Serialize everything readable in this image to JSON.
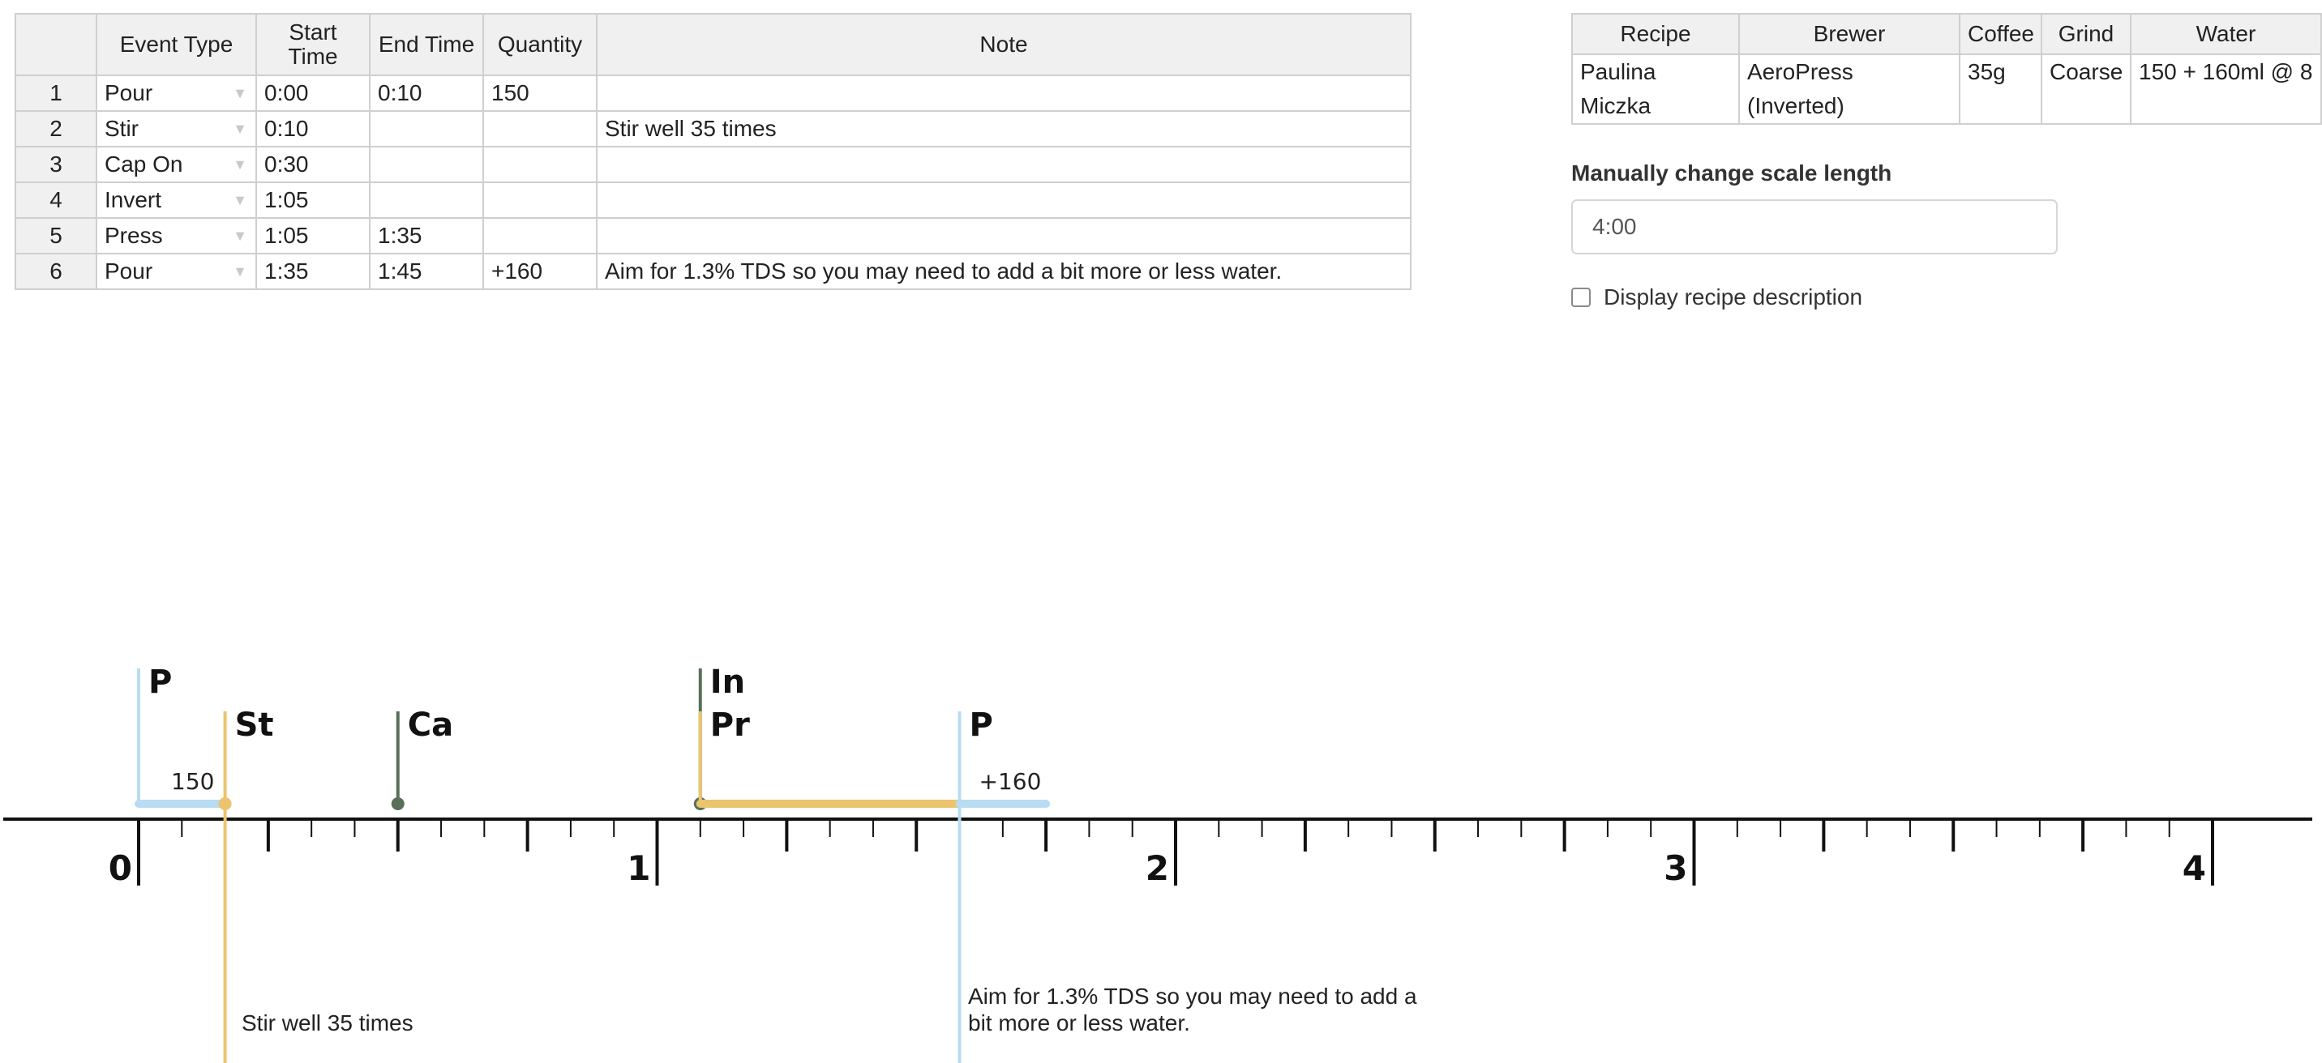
{
  "events_table": {
    "headers": [
      "",
      "Event Type",
      "Start Time",
      "End Time",
      "Quantity",
      "Note"
    ],
    "rows": [
      {
        "num": "1",
        "type": "Pour",
        "start": "0:00",
        "end": "0:10",
        "quantity": "150",
        "note": ""
      },
      {
        "num": "2",
        "type": "Stir",
        "start": "0:10",
        "end": "",
        "quantity": "",
        "note": "Stir well 35 times"
      },
      {
        "num": "3",
        "type": "Cap On",
        "start": "0:30",
        "end": "",
        "quantity": "",
        "note": ""
      },
      {
        "num": "4",
        "type": "Invert",
        "start": "1:05",
        "end": "",
        "quantity": "",
        "note": ""
      },
      {
        "num": "5",
        "type": "Press",
        "start": "1:05",
        "end": "1:35",
        "quantity": "",
        "note": ""
      },
      {
        "num": "6",
        "type": "Pour",
        "start": "1:35",
        "end": "1:45",
        "quantity": "+160",
        "note": "Aim for 1.3% TDS so you may need to add a bit more or less water."
      }
    ],
    "dropdown_icon": "triangle-down-icon"
  },
  "recipe_table": {
    "headers": [
      "Recipe",
      "Brewer",
      "Coffee",
      "Grind",
      "Water"
    ],
    "row": {
      "recipe": "Paulina Miczka",
      "brewer": "AeroPress (Inverted)",
      "coffee": "35g",
      "grind": "Coarse",
      "water": "150 + 160ml @ 8"
    }
  },
  "scale": {
    "label": "Manually change scale length",
    "value": "4:00"
  },
  "description_toggle": {
    "label": "Display recipe description",
    "checked": false
  },
  "timeline": {
    "scale_minutes": 4,
    "major_labels": [
      "0",
      "1",
      "2",
      "3",
      "4"
    ],
    "colors": {
      "pour": "#b8dcf2",
      "stir": "#ecc46e",
      "cap": "#596f59",
      "invert": "#596f59",
      "press": "#ecc46e",
      "axis": "#111111"
    },
    "events": [
      {
        "abbr": "P",
        "kind": "pour",
        "start_min": 0.0,
        "end_min": 0.1667,
        "quantity": "150",
        "row": 0
      },
      {
        "abbr": "St",
        "kind": "stir",
        "start_min": 0.1667,
        "end_min": null,
        "row": 1,
        "note": "Stir well 35 times"
      },
      {
        "abbr": "Ca",
        "kind": "cap",
        "start_min": 0.5,
        "end_min": null,
        "row": 1
      },
      {
        "abbr": "In",
        "kind": "invert",
        "start_min": 1.0833,
        "end_min": null,
        "row": 0
      },
      {
        "abbr": "Pr",
        "kind": "press",
        "start_min": 1.0833,
        "end_min": 1.5833,
        "row": 1
      },
      {
        "abbr": "P",
        "kind": "pour",
        "start_min": 1.5833,
        "end_min": 1.75,
        "quantity": "+160",
        "row": 1,
        "note": "Aim for 1.3% TDS so you may need to add a bit more or less water."
      }
    ],
    "notes": {
      "stir": "Stir well 35 times",
      "pour2": "Aim for 1.3% TDS so you may need to add a bit more or less water."
    }
  }
}
